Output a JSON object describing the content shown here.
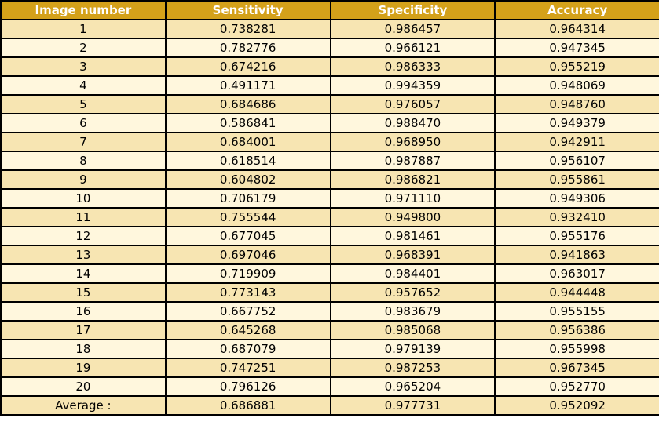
{
  "chart_data": {
    "type": "table",
    "columns": [
      "Image number",
      "Sensitivity",
      "Specificity",
      "Accuracy"
    ],
    "rows": [
      [
        "1",
        "0.738281",
        "0.986457",
        "0.964314"
      ],
      [
        "2",
        "0.782776",
        "0.966121",
        "0.947345"
      ],
      [
        "3",
        "0.674216",
        "0.986333",
        "0.955219"
      ],
      [
        "4",
        "0.491171",
        "0.994359",
        "0.948069"
      ],
      [
        "5",
        "0.684686",
        "0.976057",
        "0.948760"
      ],
      [
        "6",
        "0.586841",
        "0.988470",
        "0.949379"
      ],
      [
        "7",
        "0.684001",
        "0.968950",
        "0.942911"
      ],
      [
        "8",
        "0.618514",
        "0.987887",
        "0.956107"
      ],
      [
        "9",
        "0.604802",
        "0.986821",
        "0.955861"
      ],
      [
        "10",
        "0.706179",
        "0.971110",
        "0.949306"
      ],
      [
        "11",
        "0.755544",
        "0.949800",
        "0.932410"
      ],
      [
        "12",
        "0.677045",
        "0.981461",
        "0.955176"
      ],
      [
        "13",
        "0.697046",
        "0.968391",
        "0.941863"
      ],
      [
        "14",
        "0.719909",
        "0.984401",
        "0.963017"
      ],
      [
        "15",
        "0.773143",
        "0.957652",
        "0.944448"
      ],
      [
        "16",
        "0.667752",
        "0.983679",
        "0.955155"
      ],
      [
        "17",
        "0.645268",
        "0.985068",
        "0.956386"
      ],
      [
        "18",
        "0.687079",
        "0.979139",
        "0.955998"
      ],
      [
        "19",
        "0.747251",
        "0.987253",
        "0.967345"
      ],
      [
        "20",
        "0.796126",
        "0.965204",
        "0.952770"
      ],
      [
        "Average :",
        "0.686881",
        "0.977731",
        "0.952092"
      ]
    ]
  },
  "colors": {
    "header_background": "#d4a11a",
    "header_text": "#ffffff",
    "row_odd_background": "#f7e5b2",
    "row_even_background": "#fff7dd",
    "border": "#000000"
  }
}
